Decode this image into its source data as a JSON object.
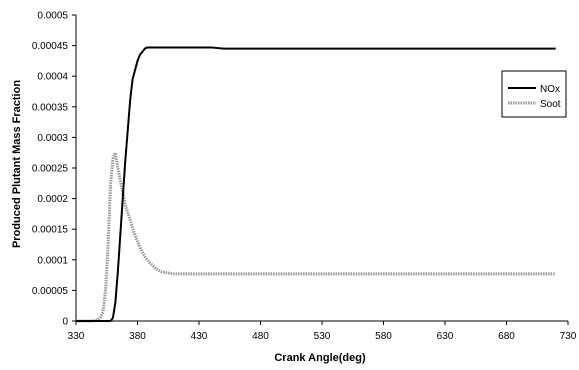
{
  "chart_data": {
    "type": "line",
    "title": "",
    "xlabel": "Crank Angle(deg)",
    "ylabel": "Produced Plutant Mass Fraction",
    "xlim": [
      330,
      730
    ],
    "ylim": [
      0,
      0.0005
    ],
    "xticks": [
      "330",
      "380",
      "430",
      "480",
      "530",
      "580",
      "630",
      "680",
      "730"
    ],
    "yticks": [
      "0",
      "0.00005",
      "0.0001",
      "0.00015",
      "0.0002",
      "0.00025",
      "0.0003",
      "0.00035",
      "0.0004",
      "0.00045",
      "0.0005"
    ],
    "grid": false,
    "legend": "right",
    "series": [
      {
        "name": "NOx",
        "color": "#000000",
        "x": [
          330,
          358,
          360,
          362,
          364,
          366,
          368,
          370,
          372,
          374,
          376,
          378,
          380,
          382,
          384,
          386,
          388,
          392,
          400,
          440,
          450,
          720
        ],
        "y": [
          0,
          0,
          5e-06,
          3e-05,
          8e-05,
          0.00014,
          0.0002,
          0.00026,
          0.00031,
          0.00036,
          0.000395,
          0.00041,
          0.000425,
          0.000435,
          0.00044,
          0.000445,
          0.000447,
          0.000447,
          0.000447,
          0.000447,
          0.000445,
          0.000445
        ]
      },
      {
        "name": "Soot",
        "color": "#999999",
        "x": [
          330,
          344,
          348,
          350,
          352,
          354,
          356,
          358,
          360,
          362,
          364,
          366,
          368,
          370,
          374,
          378,
          382,
          386,
          390,
          395,
          400,
          410,
          420,
          720
        ],
        "y": [
          0,
          0,
          2e-06,
          6e-06,
          1.5e-05,
          5e-05,
          0.00012,
          0.00022,
          0.000265,
          0.000275,
          0.00025,
          0.00023,
          0.00021,
          0.00019,
          0.000165,
          0.00014,
          0.00012,
          0.000105,
          9.5e-05,
          8.5e-05,
          8e-05,
          7.7e-05,
          7.7e-05,
          7.7e-05
        ]
      }
    ]
  }
}
